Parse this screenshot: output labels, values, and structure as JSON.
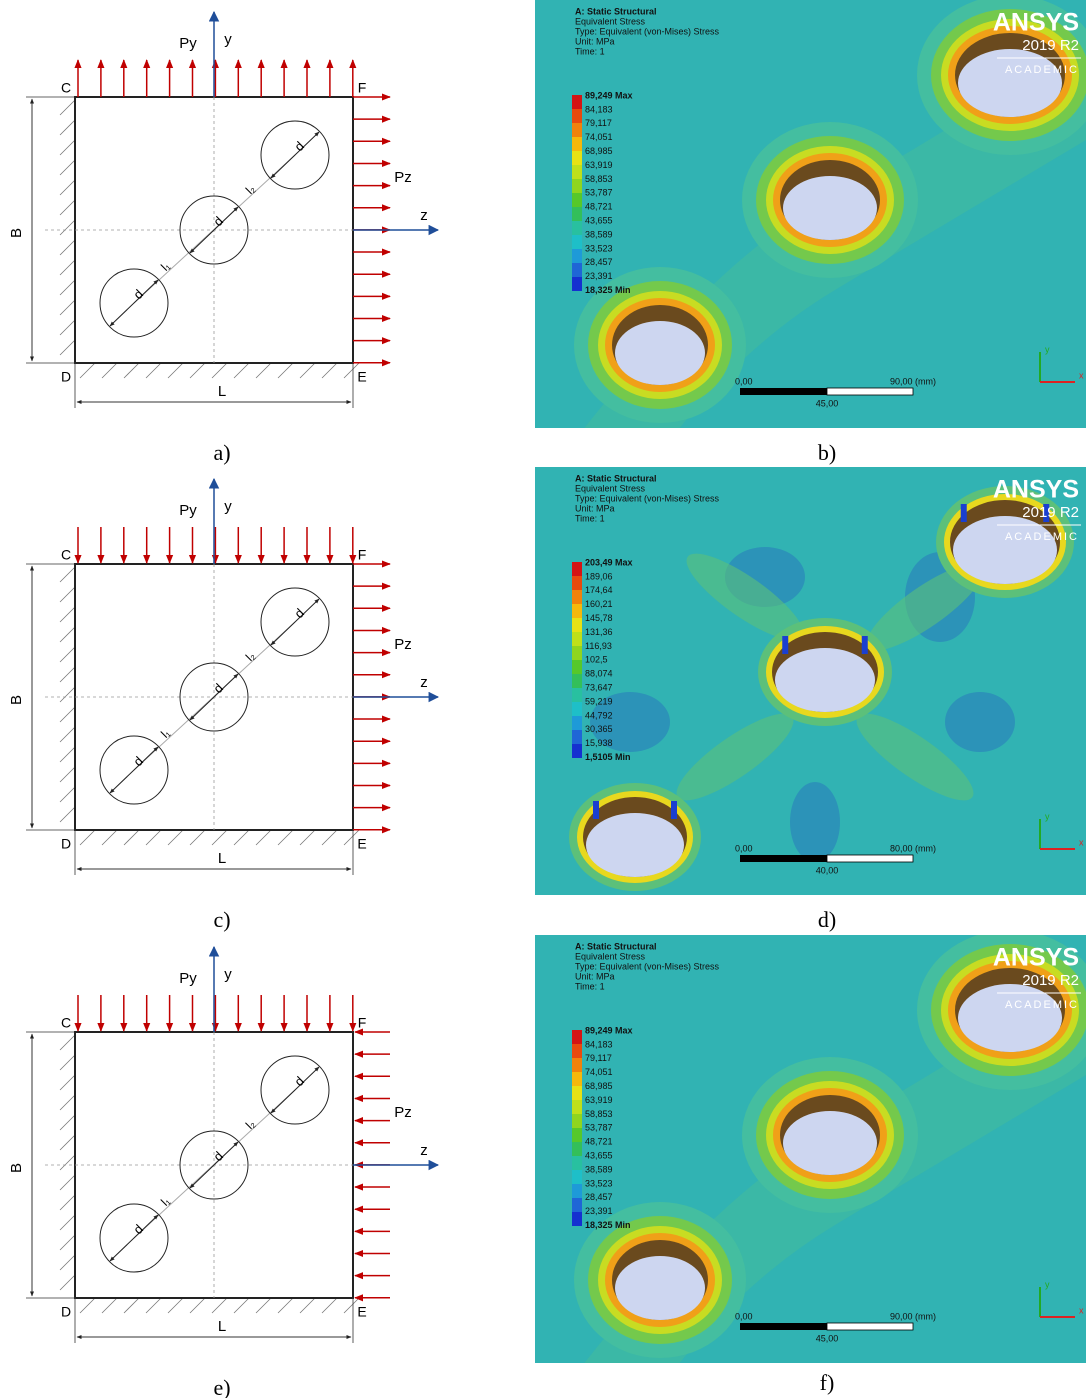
{
  "figure": {
    "diagrams": [
      {
        "caption": "a)",
        "py": "Py",
        "y": "y",
        "pz": "Pz",
        "z": "z",
        "corners": [
          "C",
          "F",
          "D",
          "E"
        ],
        "b": "B",
        "l": "L",
        "d": [
          "d",
          "d",
          "d"
        ],
        "l1": "l₁",
        "l2": "l₂"
      },
      {
        "caption": "c)",
        "py": "Py",
        "y": "y",
        "pz": "Pz",
        "z": "z",
        "corners": [
          "C",
          "F",
          "D",
          "E"
        ],
        "b": "B",
        "l": "L",
        "d": [
          "d",
          "d",
          "d"
        ],
        "l1": "l₁",
        "l2": "l₂"
      },
      {
        "caption": "e)",
        "py": "Py",
        "y": "y",
        "pz": "Pz",
        "z": "z",
        "corners": [
          "C",
          "F",
          "D",
          "E"
        ],
        "b": "B",
        "l": "L",
        "d": [
          "d",
          "d",
          "d"
        ],
        "l1": "l₁",
        "l2": "l₂"
      }
    ],
    "results": [
      {
        "caption": "b)",
        "header": [
          "A: Static Structural",
          "Equivalent Stress",
          "Type: Equivalent (von-Mises) Stress",
          "Unit: MPa",
          "Time: 1"
        ],
        "legend": [
          "89,249 Max",
          "84,183",
          "79,117",
          "74,051",
          "68,985",
          "63,919",
          "58,853",
          "53,787",
          "48,721",
          "43,655",
          "38,589",
          "33,523",
          "28,457",
          "23,391",
          "18,325 Min"
        ],
        "logo": "ANSYS",
        "version": "2019 R2",
        "edition": "ACADEMIC",
        "scale": [
          "0,00",
          "90,00 (mm)",
          "45,00"
        ],
        "axes": [
          "y",
          "x"
        ]
      },
      {
        "caption": "d)",
        "header": [
          "A: Static Structural",
          "Equivalent Stress",
          "Type: Equivalent (von-Mises) Stress",
          "Unit: MPa",
          "Time: 1"
        ],
        "legend": [
          "203,49 Max",
          "189,06",
          "174,64",
          "160,21",
          "145,78",
          "131,36",
          "116,93",
          "102,5",
          "88,074",
          "73,647",
          "59,219",
          "44,792",
          "30,365",
          "15,938",
          "1,5105 Min"
        ],
        "logo": "ANSYS",
        "version": "2019 R2",
        "edition": "ACADEMIC",
        "scale": [
          "0,00",
          "80,00 (mm)",
          "40,00"
        ],
        "axes": [
          "y",
          "x"
        ]
      },
      {
        "caption": "f)",
        "header": [
          "A: Static Structural",
          "Equivalent Stress",
          "Type: Equivalent (von-Mises) Stress",
          "Unit: MPa",
          "Time: 1"
        ],
        "legend": [
          "89,249 Max",
          "84,183",
          "79,117",
          "74,051",
          "68,985",
          "63,919",
          "58,853",
          "53,787",
          "48,721",
          "43,655",
          "38,589",
          "33,523",
          "28,457",
          "23,391",
          "18,325 Min"
        ],
        "logo": "ANSYS",
        "version": "2019 R2",
        "edition": "ACADEMIC",
        "scale": [
          "0,00",
          "90,00 (mm)",
          "45,00"
        ],
        "axes": [
          "y",
          "x"
        ]
      }
    ]
  }
}
